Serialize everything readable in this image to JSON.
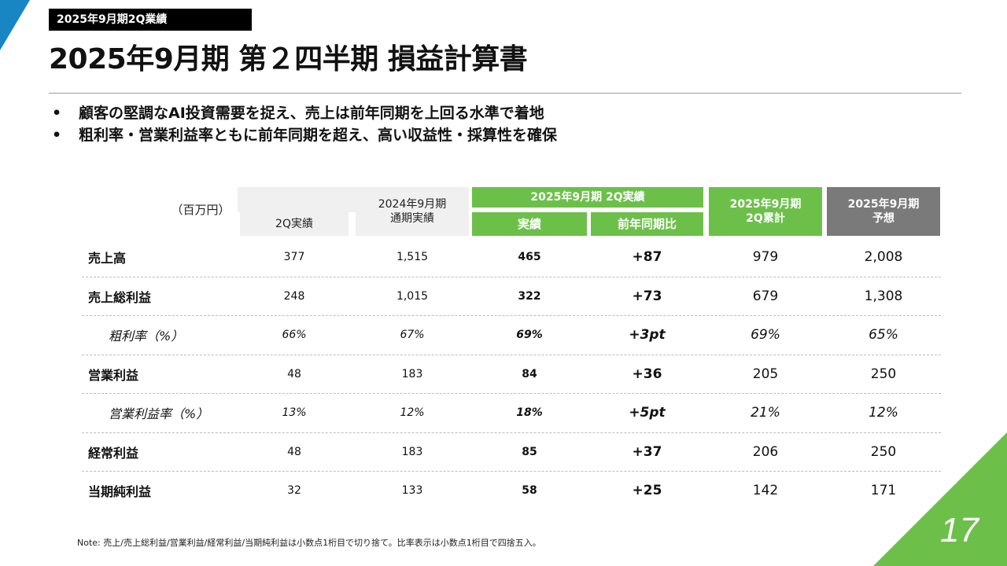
{
  "section_tag": "2025年9月期2Q業績",
  "title": "2025年9月期 第２四半期 損益計算書",
  "bullets": [
    "顧客の堅調なAI投資需要を捉え、売上は前年同期を上回る水準で着地",
    "粗利率・営業利益率ともに前年同期を超え、高い収益性・採算性を確保"
  ],
  "bullet_char": "•",
  "table": {
    "unit": "（百万円）",
    "headers": {
      "q2_prev": "2Q実績",
      "fy2024": "2024年9月期\n通期実績",
      "current_group": "2025年9月期 2Q実績",
      "actual": "実績",
      "yoy": "前年同期比",
      "cumulative": "2025年9月期\n2Q累計",
      "forecast": "2025年9月期\n予想"
    },
    "rows": [
      {
        "label": "売上高",
        "italic": false,
        "values": [
          "377",
          "1,515",
          "465",
          "+87",
          "979",
          "2,008"
        ]
      },
      {
        "label": "売上総利益",
        "italic": false,
        "values": [
          "248",
          "1,015",
          "322",
          "+73",
          "679",
          "1,308"
        ]
      },
      {
        "label": "粗利率（%）",
        "italic": true,
        "values": [
          "66%",
          "67%",
          "69%",
          "+3pt",
          "69%",
          "65%"
        ]
      },
      {
        "label": "営業利益",
        "italic": false,
        "values": [
          "48",
          "183",
          "84",
          "+36",
          "205",
          "250"
        ]
      },
      {
        "label": "営業利益率（%）",
        "italic": true,
        "values": [
          "13%",
          "12%",
          "18%",
          "+5pt",
          "21%",
          "12%"
        ]
      },
      {
        "label": "経常利益",
        "italic": false,
        "values": [
          "48",
          "183",
          "85",
          "+37",
          "206",
          "250"
        ]
      },
      {
        "label": "当期純利益",
        "italic": false,
        "values": [
          "32",
          "133",
          "58",
          "+25",
          "142",
          "171"
        ]
      }
    ]
  },
  "note": "Note: 売上/売上総利益/営業利益/経常利益/当期純利益は小数点1桁目で切り捨て。比率表示は小数点1桁目で四捨五入。",
  "page_number": "17",
  "colors": {
    "accent_green": "#6cc04a",
    "accent_blue": "#1786c3",
    "forecast_gray": "#7a7a7a"
  }
}
